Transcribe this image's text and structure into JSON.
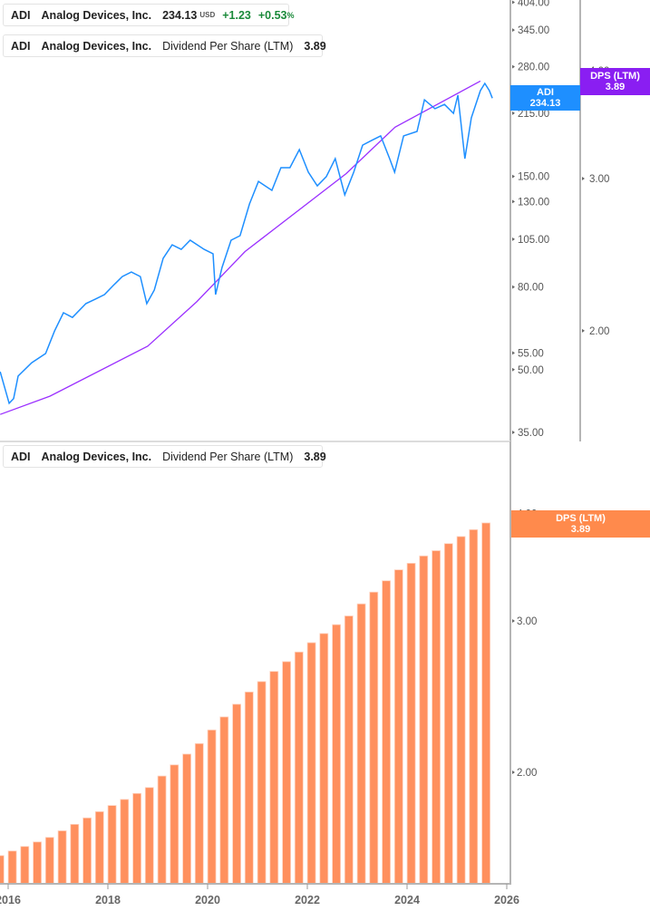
{
  "legends": {
    "price": {
      "ticker": "ADI",
      "company": "Analog Devices, Inc.",
      "price": "234.13",
      "currency": "USD",
      "change": "+1.23",
      "change_pct": "+0.53",
      "pct_sign": "%"
    },
    "dps_top": {
      "ticker": "ADI",
      "company": "Analog Devices, Inc.",
      "metric": "Dividend Per Share (LTM)",
      "value": "3.89"
    },
    "dps_bottom": {
      "ticker": "ADI",
      "company": "Analog Devices, Inc.",
      "metric": "Dividend Per Share (LTM)",
      "value": "3.89"
    }
  },
  "tags": {
    "price": {
      "label": "ADI",
      "value": "234.13"
    },
    "dps_top": {
      "label": "DPS (LTM)",
      "value": "3.89"
    },
    "dps_bottom": {
      "label": "DPS (LTM)",
      "value": "3.89"
    }
  },
  "colors": {
    "price_line": "#1E8FFF",
    "dps_line": "#9B30FF",
    "dps_tag": "#8A1EF2",
    "bars": "#FF905E",
    "bar_tag": "#FF8A4C",
    "price_tag": "#1E8FFF"
  },
  "chart_data": [
    {
      "type": "line",
      "scale": "log",
      "price_axis": {
        "ticks": [
          "404.00",
          "345.00",
          "280.00",
          "215.00",
          "150.00",
          "130.00",
          "105.00",
          "80.00",
          "55.00",
          "50.00",
          "35.00"
        ],
        "range": [
          35,
          404
        ]
      },
      "dps_axis": {
        "ticks": [
          "4.00",
          "3.00",
          "2.00"
        ],
        "range": [
          1.5,
          4.3
        ]
      },
      "series": [
        {
          "name": "ADI",
          "axis": "price",
          "x": [
            2015.84,
            2016.02,
            2016.11,
            2016.2,
            2016.47,
            2016.75,
            2016.93,
            2017.11,
            2017.29,
            2017.56,
            2017.75,
            2017.93,
            2018.11,
            2018.29,
            2018.47,
            2018.65,
            2018.78,
            2018.93,
            2019.11,
            2019.29,
            2019.47,
            2019.65,
            2019.93,
            2020.11,
            2020.16,
            2020.29,
            2020.47,
            2020.65,
            2020.84,
            2021.02,
            2021.29,
            2021.47,
            2021.65,
            2021.84,
            2022.02,
            2022.2,
            2022.38,
            2022.56,
            2022.75,
            2022.93,
            2023.11,
            2023.29,
            2023.47,
            2023.65,
            2023.75,
            2023.93,
            2024.2,
            2024.35,
            2024.56,
            2024.75,
            2024.93,
            2025.02,
            2025.16,
            2025.29,
            2025.47,
            2025.56,
            2025.65,
            2025.71
          ],
          "y": [
            49.4,
            41.3,
            42.4,
            48.2,
            52.0,
            54.8,
            62.3,
            69.1,
            67.3,
            72.8,
            74.7,
            76.6,
            80.7,
            84.9,
            87.1,
            84.9,
            72.8,
            78.6,
            94.2,
            101.7,
            99.1,
            104.4,
            99.1,
            96.6,
            76.6,
            89.4,
            104.4,
            107.1,
            128.3,
            145.9,
            138.6,
            157.7,
            157.7,
            174.8,
            153.7,
            142.2,
            149.8,
            166.0,
            135.1,
            153.7,
            179.3,
            184.1,
            188.9,
            166.0,
            153.7,
            188.9,
            193.8,
            232.0,
            220.5,
            226.0,
            214.8,
            238.3,
            166.0,
            209.4,
            244.4,
            254.7,
            244.4,
            234.13
          ]
        },
        {
          "name": "DPS (LTM)",
          "axis": "dps",
          "x": [
            2015.84,
            2016.84,
            2018.8,
            2019.78,
            2020.75,
            2021.1,
            2022.78,
            2023.76,
            2025.47
          ],
          "y": [
            1.6,
            1.68,
            1.92,
            2.16,
            2.47,
            2.56,
            3.04,
            3.44,
            3.89
          ]
        }
      ]
    },
    {
      "type": "bar",
      "scale": "log",
      "y_ticks": [
        "4.00",
        "3.00",
        "2.00"
      ],
      "x_ticks": [
        "2016",
        "2018",
        "2020",
        "2022",
        "2024",
        "2026"
      ],
      "series": [
        {
          "name": "DPS (LTM)",
          "x": [
            "2015-11",
            "2016-02",
            "2016-05",
            "2016-08",
            "2016-11",
            "2017-02",
            "2017-05",
            "2017-08",
            "2017-11",
            "2018-02",
            "2018-05",
            "2018-08",
            "2018-11",
            "2019-02",
            "2019-05",
            "2019-08",
            "2019-11",
            "2020-02",
            "2020-05",
            "2020-08",
            "2020-11",
            "2021-02",
            "2021-05",
            "2021-08",
            "2021-11",
            "2022-02",
            "2022-05",
            "2022-08",
            "2022-11",
            "2023-02",
            "2023-05",
            "2023-08",
            "2023-11",
            "2024-02",
            "2024-05",
            "2024-08",
            "2024-11",
            "2025-02",
            "2025-05",
            "2025-08"
          ],
          "values": [
            1.6,
            1.62,
            1.64,
            1.66,
            1.68,
            1.71,
            1.74,
            1.77,
            1.8,
            1.83,
            1.86,
            1.89,
            1.92,
            1.98,
            2.04,
            2.1,
            2.16,
            2.24,
            2.32,
            2.4,
            2.48,
            2.55,
            2.62,
            2.69,
            2.76,
            2.83,
            2.9,
            2.97,
            3.04,
            3.14,
            3.24,
            3.34,
            3.44,
            3.5,
            3.57,
            3.62,
            3.69,
            3.76,
            3.83,
            3.9
          ]
        }
      ]
    }
  ]
}
